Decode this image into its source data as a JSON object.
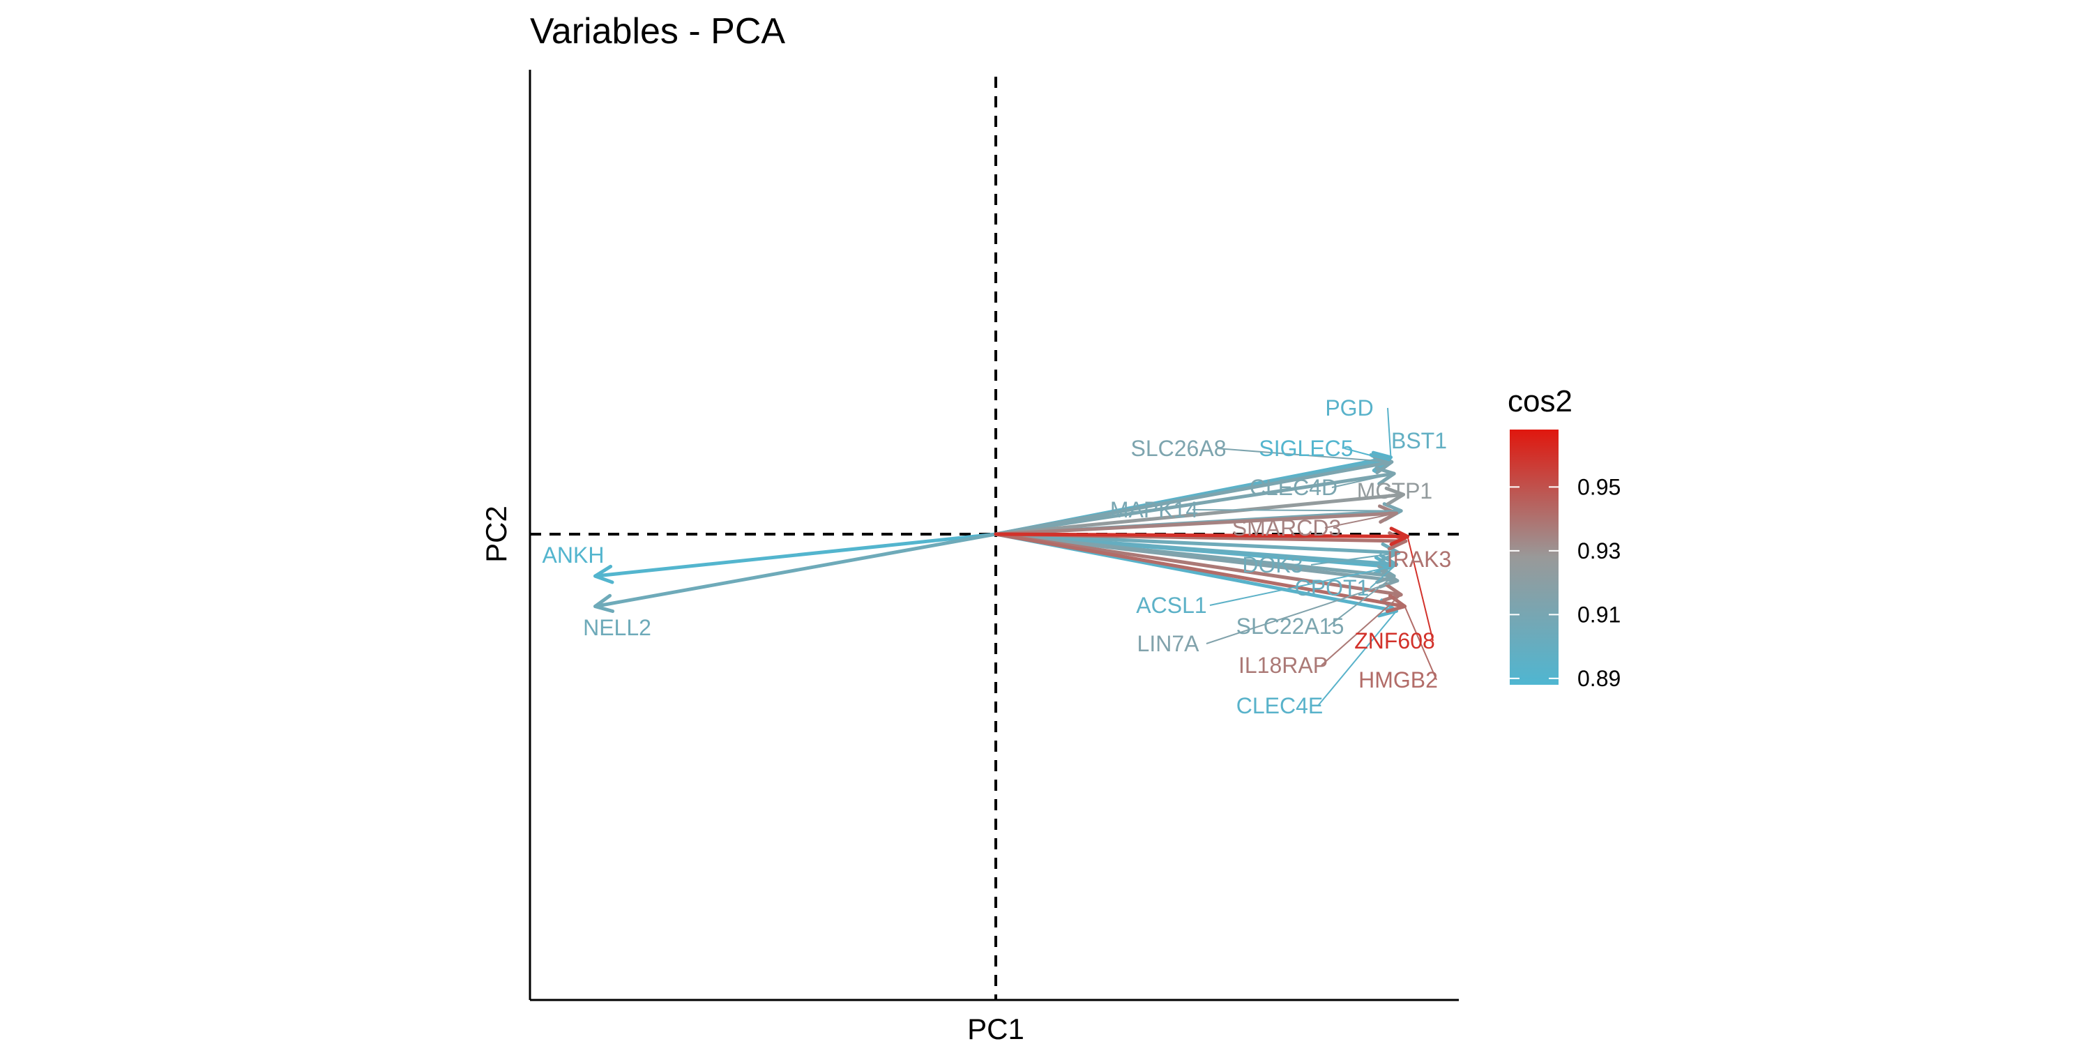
{
  "chart_data": {
    "type": "pca_variable_biplot",
    "title": "Variables - PCA",
    "xlabel": "PC1",
    "ylabel": "PC2",
    "xlim": [
      -1.0,
      1.0
    ],
    "ylim": [
      -1.0,
      1.0
    ],
    "reference_lines": {
      "x": 0,
      "y": 0,
      "style": "dashed"
    },
    "color_variable": "cos2",
    "color_scale": {
      "low": "#4fb6d1",
      "mid": "#999999",
      "high": "#e0170e",
      "domain": [
        0.888,
        0.968
      ]
    },
    "legend": {
      "title": "cos2",
      "ticks": [
        "0.95",
        "0.93",
        "0.91",
        "0.89"
      ],
      "tick_values": [
        0.95,
        0.93,
        0.91,
        0.89
      ],
      "placement": "right"
    },
    "variables": [
      {
        "name": "PGD",
        "x": 0.848,
        "y": 0.165,
        "cos2": 0.893
      },
      {
        "name": "BST1",
        "x": 0.843,
        "y": 0.16,
        "cos2": 0.898
      },
      {
        "name": "SLC26A8",
        "x": 0.85,
        "y": 0.155,
        "cos2": 0.913
      },
      {
        "name": "SIGLEC5",
        "x": 0.846,
        "y": 0.158,
        "cos2": 0.89
      },
      {
        "name": "CLEC4D",
        "x": 0.855,
        "y": 0.13,
        "cos2": 0.912
      },
      {
        "name": "MCTP1",
        "x": 0.875,
        "y": 0.085,
        "cos2": 0.925
      },
      {
        "name": "MAPK14",
        "x": 0.87,
        "y": 0.05,
        "cos2": 0.91
      },
      {
        "name": "SMARCD3",
        "x": 0.86,
        "y": 0.045,
        "cos2": 0.935
      },
      {
        "name": "IRAK3",
        "x": 0.88,
        "y": -0.015,
        "cos2": 0.94
      },
      {
        "name": "ZNF608",
        "x": 0.884,
        "y": -0.005,
        "cos2": 0.96
      },
      {
        "name": "DOK3",
        "x": 0.865,
        "y": -0.04,
        "cos2": 0.905
      },
      {
        "name": "CPOT1",
        "x": 0.86,
        "y": -0.065,
        "cos2": 0.9
      },
      {
        "name": "ACSL1",
        "x": 0.85,
        "y": -0.07,
        "cos2": 0.895
      },
      {
        "name": "SLC22A15",
        "x": 0.855,
        "y": -0.09,
        "cos2": 0.912
      },
      {
        "name": "LIN7A",
        "x": 0.862,
        "y": -0.1,
        "cos2": 0.915
      },
      {
        "name": "IL18RAP",
        "x": 0.87,
        "y": -0.13,
        "cos2": 0.938
      },
      {
        "name": "HMGB2",
        "x": 0.878,
        "y": -0.155,
        "cos2": 0.942
      },
      {
        "name": "CLEC4E",
        "x": 0.86,
        "y": -0.165,
        "cos2": 0.893
      },
      {
        "name": "ANKH",
        "x": -0.86,
        "y": -0.09,
        "cos2": 0.89
      },
      {
        "name": "NELL2",
        "x": -0.86,
        "y": -0.155,
        "cos2": 0.905
      }
    ]
  }
}
